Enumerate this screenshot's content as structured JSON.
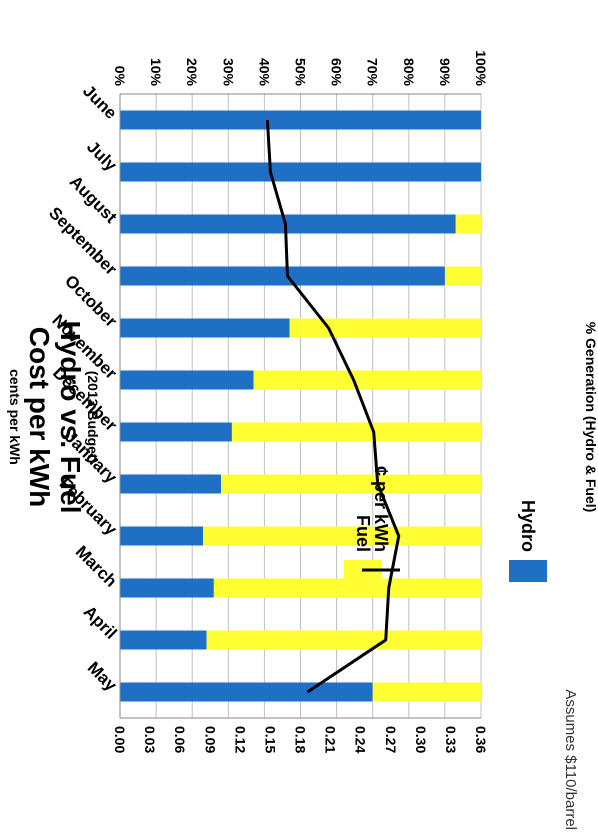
{
  "chart_data": {
    "type": "bar",
    "title": "Cost per kWh",
    "subtitle_line": "Hydro vs. Fuel",
    "budget_note": "(2013 Budget)",
    "categories": [
      "June",
      "July",
      "August",
      "September",
      "October",
      "November",
      "December",
      "January",
      "February",
      "March",
      "April",
      "May"
    ],
    "series": [
      {
        "name": "Hydro",
        "kind": "stacked-bar",
        "axis": "percent",
        "color": "#1f6fc5",
        "values": [
          100,
          100,
          93,
          90,
          47,
          37,
          31,
          28,
          23,
          26,
          24,
          70
        ]
      },
      {
        "name": "Fuel",
        "kind": "stacked-bar",
        "axis": "percent",
        "color": "#ffff33",
        "values": [
          0,
          0,
          7,
          10,
          53,
          63,
          69,
          72,
          77,
          74,
          76,
          30
        ]
      },
      {
        "name": "¢ per kWh",
        "kind": "line",
        "axis": "cents",
        "color": "#000000",
        "values": [
          0.147,
          0.15,
          0.165,
          0.167,
          0.208,
          0.233,
          0.253,
          0.257,
          0.278,
          0.268,
          0.265,
          0.187
        ]
      }
    ],
    "percent_axis": {
      "label": "% Generation (Hydro & Fuel)",
      "ticks": [
        "0%",
        "10%",
        "20%",
        "30%",
        "40%",
        "50%",
        "60%",
        "70%",
        "80%",
        "90%",
        "100%"
      ],
      "range": [
        0,
        100
      ]
    },
    "cents_axis": {
      "label": "cents per kWh",
      "ticks": [
        "0.00",
        "0.03",
        "0.06",
        "0.09",
        "0.12",
        "0.15",
        "0.18",
        "0.21",
        "0.24",
        "0.27",
        "0.30",
        "0.33",
        "0.36"
      ],
      "range": [
        0,
        0.36
      ]
    },
    "grid": true,
    "legend": {
      "items": [
        "Hydro",
        "Fuel",
        "¢ per kWh"
      ],
      "placement": "bottom"
    },
    "note": "Assumes $110/barrel",
    "orientation": "rotated-180"
  }
}
